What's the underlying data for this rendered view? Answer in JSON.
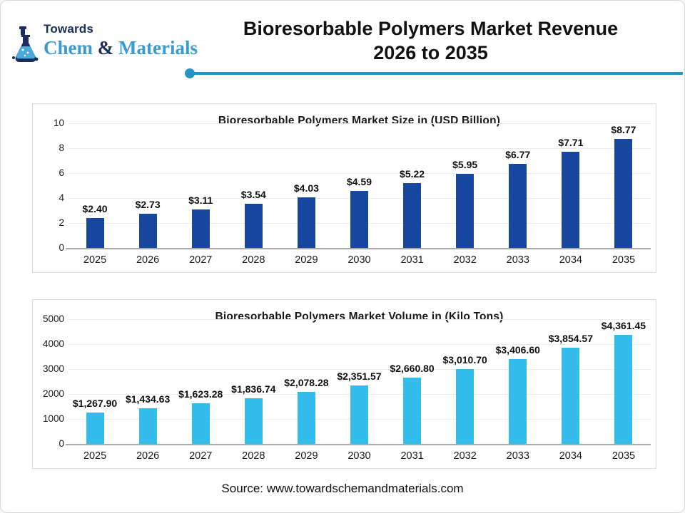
{
  "header": {
    "logo": {
      "top": "Towards",
      "chem": "Chem",
      "amp": " & ",
      "materials": "Materials"
    },
    "title_line1": "Bioresorbable Polymers Market Revenue",
    "title_line2": "2026 to 2035"
  },
  "colors": {
    "size_bar": "#17479e",
    "volume_bar": "#33bdec",
    "divider": "#2694c7",
    "brand_blue": "#3a9ad2",
    "brand_navy": "#1b2d5b"
  },
  "chart_data": [
    {
      "type": "bar",
      "title": "Bioresorbable Polymers Market Size in (USD Billion)",
      "categories": [
        "2025",
        "2026",
        "2027",
        "2028",
        "2029",
        "2030",
        "2031",
        "2032",
        "2033",
        "2034",
        "2035"
      ],
      "values": [
        2.4,
        2.73,
        3.11,
        3.54,
        4.03,
        4.59,
        5.22,
        5.95,
        6.77,
        7.71,
        8.77
      ],
      "labels": [
        "$2.40",
        "$2.73",
        "$3.11",
        "$3.54",
        "$4.03",
        "$4.59",
        "$5.22",
        "$5.95",
        "$6.77",
        "$7.71",
        "$8.77"
      ],
      "xlabel": "",
      "ylabel": "",
      "ylim": [
        0,
        10
      ],
      "ytick_step": 2,
      "grid": true,
      "legend": false,
      "bar_color": "#17479e"
    },
    {
      "type": "bar",
      "title": "Bioresorbable Polymers Market Volume in (Kilo Tons)",
      "categories": [
        "2025",
        "2026",
        "2027",
        "2028",
        "2029",
        "2030",
        "2031",
        "2032",
        "2033",
        "2034",
        "2035"
      ],
      "values": [
        1267.9,
        1434.63,
        1623.28,
        1836.74,
        2078.28,
        2351.57,
        2660.8,
        3010.7,
        3406.6,
        3854.57,
        4361.45
      ],
      "labels": [
        "$1,267.90",
        "$1,434.63",
        "$1,623.28",
        "$1,836.74",
        "$2,078.28",
        "$2,351.57",
        "$2,660.80",
        "$3,010.70",
        "$3,406.60",
        "$3,854.57",
        "$4,361.45"
      ],
      "xlabel": "",
      "ylabel": "",
      "ylim": [
        0,
        5000
      ],
      "ytick_step": 1000,
      "grid": true,
      "legend": false,
      "bar_color": "#33bdec"
    }
  ],
  "footer": {
    "source": "Source: www.towardschemandmaterials.com"
  }
}
